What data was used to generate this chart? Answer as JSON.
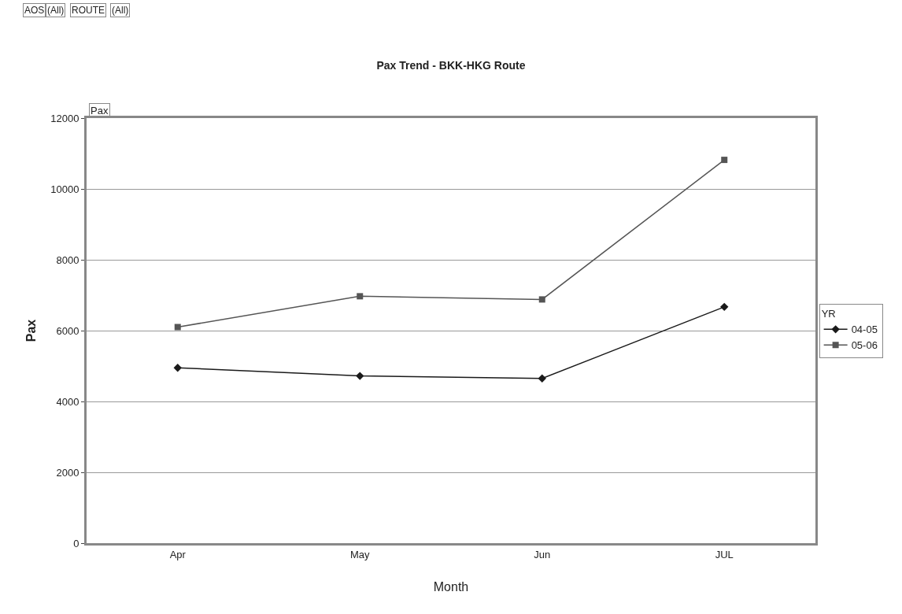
{
  "chart_data": {
    "type": "line",
    "title": "Pax Trend - BKK-HKG Route",
    "xlabel": "Month",
    "ylabel": "Pax",
    "legend_title": "YR",
    "annotations": [
      "AOS",
      "(All)",
      "ROUTE",
      "(All)",
      "Pax"
    ],
    "categories": [
      "Apr",
      "May",
      "Jun",
      "JUL"
    ],
    "series": [
      {
        "name": "04-05",
        "color": "#1a1a1a",
        "marker": "diamond",
        "values": [
          4950,
          4720,
          4650,
          6670
        ]
      },
      {
        "name": "05-06",
        "color": "#555555",
        "marker": "square",
        "values": [
          6100,
          6970,
          6880,
          10820
        ]
      }
    ],
    "ylim": [
      0,
      12000
    ],
    "yticks": [
      0,
      2000,
      4000,
      6000,
      8000,
      10000,
      12000
    ],
    "grid": "y",
    "legend": "right",
    "line_style": "solid"
  }
}
